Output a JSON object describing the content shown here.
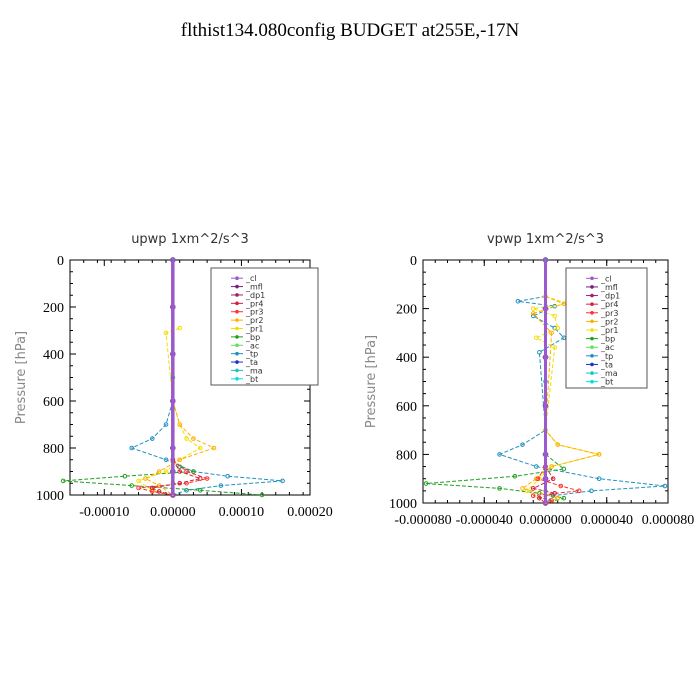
{
  "page": {
    "title": "flthist134.080config  BUDGET at255E,-17N"
  },
  "chart_data": [
    {
      "type": "line",
      "title": "upwp   1xm^2/s^3",
      "ylabel": "Pressure  [hPa]",
      "xlabel": "",
      "xlim": [
        -0.00015,
        0.0002
      ],
      "ylim": [
        1000,
        0
      ],
      "xticks": [
        "-0.00010",
        "0.00000",
        "0.00010",
        "0.00020"
      ],
      "xtick_values": [
        -0.0001,
        0.0,
        0.0001,
        0.0002
      ],
      "yticks": [
        "0",
        "200",
        "400",
        "600",
        "800",
        "1000"
      ],
      "ytick_values": [
        0,
        200,
        400,
        600,
        800,
        1000
      ],
      "legend_position": "top-right",
      "series": [
        {
          "name": "_cl",
          "color": "#9b59d0",
          "pressure": [
            0,
            200,
            400,
            600,
            800,
            900,
            1000
          ],
          "values": [
            0,
            0,
            0,
            0,
            0,
            0,
            0
          ]
        },
        {
          "name": "_mfl",
          "color": "#7a1f7a",
          "pressure": [
            0,
            200,
            400,
            600,
            800,
            900,
            1000
          ],
          "values": [
            0,
            0,
            0,
            0,
            0,
            0,
            0
          ]
        },
        {
          "name": "_dp1",
          "color": "#a0206a",
          "pressure": [
            0,
            200,
            400,
            600,
            800,
            900,
            1000
          ],
          "values": [
            0,
            0,
            0,
            0,
            0,
            0,
            0
          ]
        },
        {
          "name": "_pr4",
          "color": "#d02040",
          "pressure": [
            850,
            900,
            930,
            950,
            970,
            985,
            1000
          ],
          "values": [
            0,
            1e-05,
            4e-05,
            1e-05,
            -3e-05,
            -2e-05,
            0
          ]
        },
        {
          "name": "_pr3",
          "color": "#ff3030",
          "pressure": [
            850,
            900,
            930,
            950,
            970,
            985,
            1000
          ],
          "values": [
            0,
            2e-05,
            5e-05,
            2e-05,
            -5e-05,
            -3e-05,
            0
          ]
        },
        {
          "name": "_pr2",
          "color": "#ffb000",
          "pressure": [
            600,
            700,
            760,
            800,
            850,
            900,
            930,
            960,
            1000
          ],
          "values": [
            0,
            1e-05,
            3e-05,
            6e-05,
            1e-05,
            -2e-05,
            -4e-05,
            -2e-05,
            0
          ]
        },
        {
          "name": "_pr1",
          "color": "#f0e000",
          "pressure": [
            290,
            310,
            600,
            700,
            760,
            800,
            850,
            900,
            940,
            980,
            1000
          ],
          "values": [
            1e-05,
            -1e-05,
            0,
            1e-05,
            2e-05,
            4e-05,
            1e-05,
            -1e-05,
            -5e-05,
            -3e-05,
            0
          ]
        },
        {
          "name": "_bp",
          "color": "#20a020",
          "pressure": [
            880,
            900,
            920,
            940,
            960,
            980,
            1000
          ],
          "values": [
            1e-05,
            3e-05,
            -7e-05,
            -0.00016,
            -6e-05,
            4e-05,
            0.00013
          ]
        },
        {
          "name": "_ac",
          "color": "#60e060",
          "pressure": [
            900,
            950,
            1000
          ],
          "values": [
            0,
            0,
            0
          ]
        },
        {
          "name": "_tp",
          "color": "#2090c0",
          "pressure": [
            600,
            700,
            760,
            800,
            850,
            900,
            920,
            940,
            960,
            980,
            1000
          ],
          "values": [
            0,
            -1e-05,
            -3e-05,
            -6e-05,
            -1e-05,
            3e-05,
            8e-05,
            0.00016,
            7e-05,
            2e-05,
            0
          ]
        },
        {
          "name": "_ta",
          "color": "#2030c0",
          "pressure": [
            0,
            200,
            400,
            600,
            800,
            900,
            1000
          ],
          "values": [
            0,
            0,
            0,
            0,
            0,
            0,
            0
          ]
        },
        {
          "name": "_ma",
          "color": "#20c0c0",
          "pressure": [
            0,
            500,
            1000
          ],
          "values": [
            0,
            0,
            0
          ]
        },
        {
          "name": "_bt",
          "color": "#00e0e0",
          "pressure": [
            0,
            500,
            1000
          ],
          "values": [
            0,
            0,
            0
          ]
        }
      ]
    },
    {
      "type": "line",
      "title": "vpwp   1xm^2/s^3",
      "ylabel": "Pressure  [hPa]",
      "xlabel": "",
      "xlim": [
        -8e-05,
        8e-05
      ],
      "ylim": [
        1000,
        0
      ],
      "xticks": [
        "-0.000080",
        "-0.000040",
        "0.000000",
        "0.000040",
        "0.000080"
      ],
      "xtick_values": [
        -8e-05,
        -4e-05,
        0.0,
        4e-05,
        8e-05
      ],
      "yticks": [
        "0",
        "200",
        "400",
        "600",
        "800",
        "1000"
      ],
      "ytick_values": [
        0,
        200,
        400,
        600,
        800,
        1000
      ],
      "legend_position": "top-right",
      "series": [
        {
          "name": "_cl",
          "color": "#9b59d0",
          "pressure": [
            0,
            200,
            400,
            600,
            800,
            900,
            1000
          ],
          "values": [
            0,
            0,
            0,
            0,
            0,
            0,
            0
          ]
        },
        {
          "name": "_mfl",
          "color": "#7a1f7a",
          "pressure": [
            0,
            200,
            400,
            600,
            800,
            900,
            1000
          ],
          "values": [
            0,
            0,
            0,
            0,
            0,
            0,
            0
          ]
        },
        {
          "name": "_dp1",
          "color": "#a0206a",
          "pressure": [
            0,
            200,
            400,
            600,
            800,
            900,
            1000
          ],
          "values": [
            0,
            0,
            0,
            0,
            0,
            0,
            0
          ]
        },
        {
          "name": "_pr4",
          "color": "#d02040",
          "pressure": [
            850,
            900,
            940,
            960,
            980,
            1000
          ],
          "values": [
            0,
            5e-06,
            -8e-06,
            6e-06,
            -4e-06,
            0
          ]
        },
        {
          "name": "_pr3",
          "color": "#ff3030",
          "pressure": [
            850,
            900,
            930,
            950,
            970,
            990,
            1000
          ],
          "values": [
            0,
            -5e-06,
            1e-05,
            2.2e-05,
            -8e-06,
            4e-06,
            0
          ]
        },
        {
          "name": "_pr2",
          "color": "#ffb000",
          "pressure": [
            150,
            180,
            220,
            300,
            700,
            760,
            800,
            850,
            900,
            940,
            980,
            1000
          ],
          "values": [
            0,
            1.2e-05,
            -8e-06,
            4e-06,
            0,
            8e-06,
            3.5e-05,
            4e-06,
            -6e-06,
            -1.5e-05,
            8e-06,
            0
          ]
        },
        {
          "name": "_pr1",
          "color": "#f0e000",
          "pressure": [
            150,
            180,
            200,
            230,
            280,
            320,
            360,
            700,
            760,
            800,
            850,
            900,
            950,
            1000
          ],
          "values": [
            0,
            1.5e-05,
            -8e-06,
            6e-06,
            8e-06,
            -6e-06,
            6e-06,
            0,
            8e-06,
            3.5e-05,
            4e-06,
            -4e-06,
            -1.2e-05,
            0
          ]
        },
        {
          "name": "_bp",
          "color": "#20a020",
          "pressure": [
            800,
            860,
            890,
            920,
            940,
            960,
            980,
            1000
          ],
          "values": [
            0,
            1.2e-05,
            -2e-05,
            -7.8e-05,
            -3e-05,
            -4e-06,
            1.2e-05,
            0
          ]
        },
        {
          "name": "_ac",
          "color": "#60e060",
          "pressure": [
            900,
            950,
            1000
          ],
          "values": [
            0,
            0,
            0
          ]
        },
        {
          "name": "_tp",
          "color": "#2090c0",
          "pressure": [
            150,
            170,
            190,
            230,
            280,
            320,
            380,
            700,
            760,
            800,
            850,
            900,
            930,
            950,
            970,
            1000
          ],
          "values": [
            0,
            -1.8e-05,
            6e-06,
            -8e-06,
            6e-06,
            1.2e-05,
            -4e-06,
            0,
            -1.5e-05,
            -3e-05,
            -6e-06,
            3.5e-05,
            7.8e-05,
            3e-05,
            5e-06,
            0
          ]
        },
        {
          "name": "_ta",
          "color": "#2030c0",
          "pressure": [
            0,
            200,
            400,
            600,
            800,
            900,
            1000
          ],
          "values": [
            0,
            0,
            0,
            0,
            0,
            0,
            0
          ]
        },
        {
          "name": "_ma",
          "color": "#20c0c0",
          "pressure": [
            0,
            500,
            1000
          ],
          "values": [
            0,
            0,
            0
          ]
        },
        {
          "name": "_bt",
          "color": "#00e0e0",
          "pressure": [
            0,
            500,
            1000
          ],
          "values": [
            0,
            0,
            0
          ]
        }
      ]
    }
  ]
}
